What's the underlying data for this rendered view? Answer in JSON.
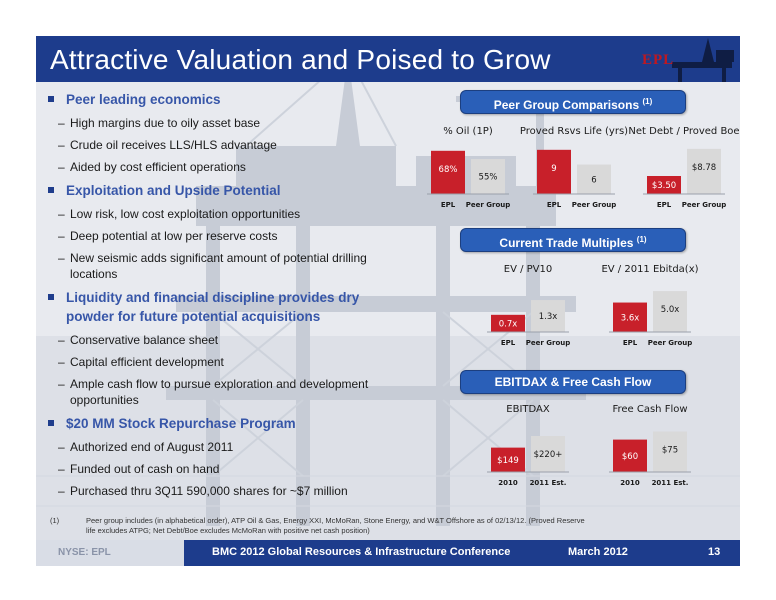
{
  "title": "Attractive Valuation and Poised to Grow",
  "logo_text": "EPL",
  "bullets": [
    {
      "text": "Peer leading economics",
      "subs": [
        "High margins due to oily asset base",
        "Crude oil receives LLS/HLS advantage",
        "Aided by cost efficient operations"
      ]
    },
    {
      "text": "Exploitation and Upside Potential",
      "subs": [
        "Low risk, low cost exploitation opportunities",
        "Deep potential at low per reserve costs",
        "New seismic adds significant amount of potential drilling locations"
      ]
    },
    {
      "text": "Liquidity and financial discipline provides dry powder for future potential acquisitions",
      "subs": [
        "Conservative balance sheet",
        "Capital efficient development",
        "Ample cash flow to pursue exploration and development opportunities"
      ]
    },
    {
      "text": "$20 MM Stock Repurchase Program",
      "subs": [
        "Authorized end of August 2011",
        "Funded out of cash on hand",
        "Purchased thru 3Q11 590,000 shares for ~$7 million"
      ]
    }
  ],
  "sections": {
    "peer": {
      "label": "Peer Group Comparisons",
      "sup": "(1)"
    },
    "trade": {
      "label": "Current Trade Multiples",
      "sup": "(1)"
    },
    "ebitdax": {
      "label": "EBITDAX & Free Cash Flow",
      "sup": ""
    }
  },
  "colors": {
    "primary_bar": "#c8202a",
    "secondary_bar": "#d9d9d9",
    "title_bar": "#1d3c8c",
    "header_pill": "#2a5fb8"
  },
  "chart_data": [
    {
      "id": "oil",
      "type": "bar",
      "title": "% Oil (1P)",
      "categories": [
        "EPL",
        "Peer Group"
      ],
      "values": [
        68,
        55
      ],
      "labels": [
        "68%",
        "55%"
      ],
      "ylim": [
        0,
        85
      ]
    },
    {
      "id": "rsvs",
      "type": "bar",
      "title": "Proved Rsvs Life (yrs)",
      "categories": [
        "EPL",
        "Peer Group"
      ],
      "values": [
        9,
        6
      ],
      "labels": [
        "9",
        "6"
      ],
      "ylim": [
        0,
        11
      ]
    },
    {
      "id": "debt",
      "type": "bar",
      "title": "Net Debt / Proved Boe",
      "categories": [
        "EPL",
        "Peer Group"
      ],
      "values": [
        3.5,
        8.78
      ],
      "labels": [
        "$3.50",
        "$8.78"
      ],
      "ylim": [
        0,
        10.5
      ]
    },
    {
      "id": "pv10",
      "type": "bar",
      "title": "EV / PV10",
      "categories": [
        "EPL",
        "Peer Group"
      ],
      "values": [
        0.7,
        1.3
      ],
      "labels": [
        "0.7x",
        "1.3x"
      ],
      "ylim": [
        0,
        2.2
      ]
    },
    {
      "id": "ebitda",
      "type": "bar",
      "title": "EV / 2011 Ebitda(x)",
      "categories": [
        "EPL",
        "Peer Group"
      ],
      "values": [
        3.6,
        5.0
      ],
      "labels": [
        "3.6x",
        "5.0x"
      ],
      "ylim": [
        0,
        6.6
      ]
    },
    {
      "id": "ebitdax",
      "type": "bar",
      "title": "EBITDAX",
      "categories": [
        "2010",
        "2011 Est."
      ],
      "values": [
        149,
        220
      ],
      "labels": [
        "$149",
        "$220+"
      ],
      "ylim": [
        0,
        330
      ]
    },
    {
      "id": "fcf",
      "type": "bar",
      "title": "Free Cash Flow",
      "categories": [
        "2010",
        "2011 Est."
      ],
      "values": [
        60,
        75
      ],
      "labels": [
        "$60",
        "$75"
      ],
      "ylim": [
        0,
        100
      ]
    }
  ],
  "footnote": {
    "num": "(1)",
    "text": "Peer group includes (in alphabetical order), ATP Oil & Gas, Energy XXI, McMoRan, Stone Energy, and W&T Offshore as of 02/13/12. (Proved Reserve life excludes ATPG; Net Debt/Boe excludes McMoRan with positive net cash position)"
  },
  "footer": {
    "ticker": "NYSE: EPL",
    "conference": "BMC 2012 Global Resources & Infrastructure Conference",
    "date": "March 2012",
    "page": "13"
  }
}
